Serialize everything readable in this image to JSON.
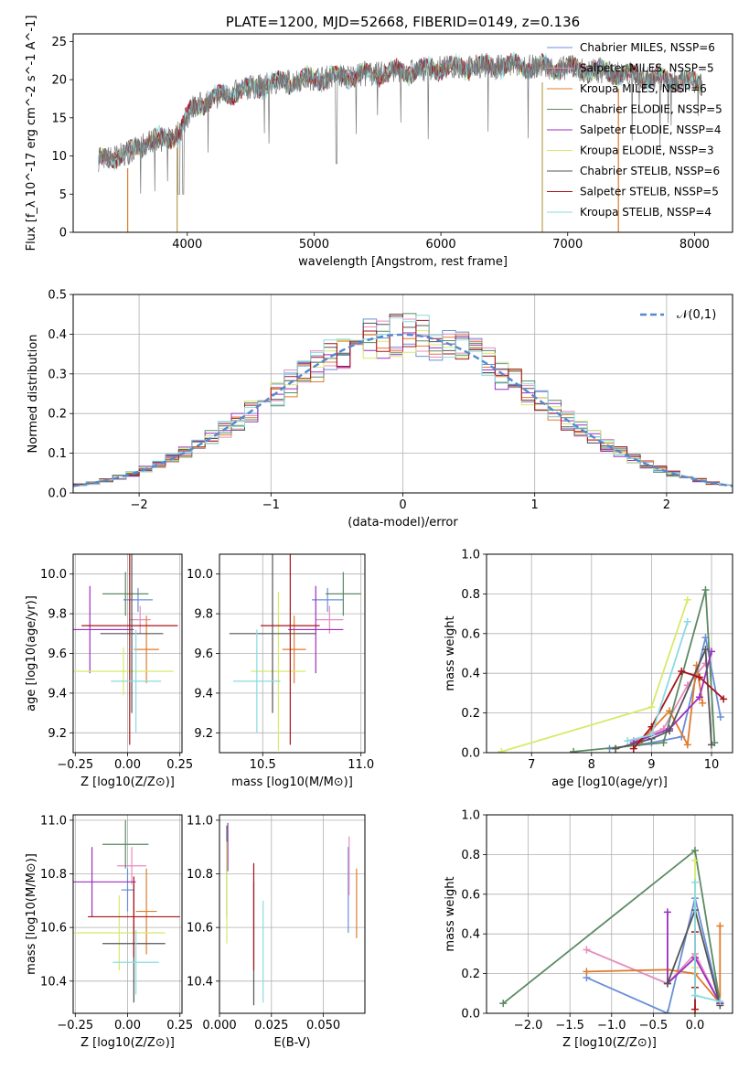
{
  "colors": {
    "chabrier_miles": "#6a8fd8",
    "salpeter_miles": "#e58cbf",
    "kroupa_miles": "#e07b2b",
    "chabrier_elodie": "#5b8a62",
    "salpeter_elodie": "#9b2fc2",
    "kroupa_elodie": "#d6ea6a",
    "chabrier_stelib": "#555555",
    "salpeter_stelib": "#a8141a",
    "kroupa_stelib": "#8adbe0",
    "normal_fit": "#5588cc",
    "grid": "#b0b0b0"
  },
  "chart_data": [
    {
      "id": "spectrum",
      "type": "line",
      "title": "PLATE=1200, MJD=52668, FIBERID=0149, z=0.136",
      "xlabel": "wavelength [Angstrom, rest frame]",
      "ylabel": "Flux [f_λ 10^-17 erg cm^-2 s^-1 A^-1]",
      "xlim": [
        3100,
        8300
      ],
      "ylim": [
        0,
        26
      ],
      "xticks": [
        "4000",
        "5000",
        "6000",
        "7000",
        "8000"
      ],
      "yticks": [
        "0",
        "5",
        "10",
        "15",
        "20",
        "25"
      ],
      "grid": false,
      "legend_position": "right",
      "legend": [
        "Chabrier MILES, NSSP=6",
        "Salpeter MILES, NSSP=5",
        "Kroupa MILES, NSSP=6",
        "Chabrier ELODIE, NSSP=5",
        "Salpeter ELODIE, NSSP=4",
        "Kroupa ELODIE, NSSP=3",
        "Chabrier STELIB, NSSP=6",
        "Salpeter STELIB, NSSP=5",
        "Kroupa STELIB, NSSP=4"
      ],
      "continuum": [
        [
          3300,
          9.5
        ],
        [
          3450,
          10.0
        ],
        [
          3550,
          10.5
        ],
        [
          3700,
          12
        ],
        [
          3850,
          12.2
        ],
        [
          3950,
          13.5
        ],
        [
          4050,
          16.5
        ],
        [
          4200,
          17.5
        ],
        [
          4400,
          18.5
        ],
        [
          4600,
          19.3
        ],
        [
          4800,
          19.8
        ],
        [
          5000,
          20.2
        ],
        [
          5200,
          20.4
        ],
        [
          5500,
          20.8
        ],
        [
          5800,
          21.2
        ],
        [
          6000,
          21.6
        ],
        [
          6300,
          21.7
        ],
        [
          6600,
          21.8
        ],
        [
          7000,
          21.5
        ],
        [
          7300,
          21.0
        ],
        [
          7600,
          20.4
        ],
        [
          7900,
          19.8
        ],
        [
          8060,
          19.5
        ]
      ],
      "dips": [
        [
          3530,
          0
        ],
        [
          3920,
          0
        ],
        [
          6800,
          0
        ],
        [
          7400,
          0
        ]
      ]
    },
    {
      "id": "residuals",
      "type": "histogram",
      "xlabel": "(data-model)/error",
      "ylabel": "Normed distribution",
      "xlim": [
        -2.5,
        2.5
      ],
      "ylim": [
        0,
        0.5
      ],
      "xticks": [
        "−2",
        "−1",
        "0",
        "1",
        "2"
      ],
      "yticks": [
        "0.0",
        "0.1",
        "0.2",
        "0.3",
        "0.4",
        "0.5"
      ],
      "grid": true,
      "legend_position": "top-right",
      "legend": [
        "𝒩(0,1)"
      ],
      "bin_width": 0.1,
      "bin_start": -2.6
    },
    {
      "id": "age_vs_Z",
      "type": "scatter",
      "xlabel": "Z [log10(Z/Z⊙)]",
      "ylabel": "age  [log10(age/yr)]",
      "xlim": [
        -0.26,
        0.26
      ],
      "ylim": [
        9.1,
        10.1
      ],
      "xticks": [
        "−0.25",
        "0.00",
        "0.25"
      ],
      "yticks": [
        "9.2",
        "9.4",
        "9.6",
        "9.8",
        "10.0"
      ],
      "grid": true,
      "points": [
        {
          "x": 0.05,
          "xerr": 0.07,
          "y": 9.87,
          "yerr": 0.06
        },
        {
          "x": 0.06,
          "xerr": 0.05,
          "y": 9.77,
          "yerr": 0.07
        },
        {
          "x": 0.09,
          "xerr": 0.06,
          "y": 9.62,
          "yerr": 0.17
        },
        {
          "x": -0.01,
          "xerr": 0.11,
          "y": 9.9,
          "yerr": 0.11
        },
        {
          "x": -0.18,
          "xerr": 0.21,
          "y": 9.72,
          "yerr": 0.22
        },
        {
          "x": -0.02,
          "xerr": 0.24,
          "y": 9.51,
          "yerr": 0.12
        },
        {
          "x": 0.02,
          "xerr": 0.15,
          "y": 9.7,
          "yerr": 0.4
        },
        {
          "x": 0.01,
          "xerr": 0.23,
          "y": 9.74,
          "yerr": 0.6
        },
        {
          "x": 0.04,
          "xerr": 0.12,
          "y": 9.46,
          "yerr": 0.26
        }
      ]
    },
    {
      "id": "age_vs_mass",
      "type": "scatter",
      "xlabel": "mass [log10(M/M⊙)]",
      "ylabel": "",
      "xlim": [
        10.28,
        11.02
      ],
      "ylim": [
        9.1,
        10.1
      ],
      "xticks": [
        "10.5",
        "11.0"
      ],
      "yticks": [
        "9.2",
        "9.4",
        "9.6",
        "9.8",
        "10.0"
      ],
      "grid": true,
      "points": [
        {
          "x": 10.83,
          "xerr": 0.08,
          "y": 9.87,
          "yerr": 0.06
        },
        {
          "x": 10.84,
          "xerr": 0.07,
          "y": 9.77,
          "yerr": 0.07
        },
        {
          "x": 10.66,
          "xerr": 0.06,
          "y": 9.62,
          "yerr": 0.17
        },
        {
          "x": 10.91,
          "xerr": 0.09,
          "y": 9.9,
          "yerr": 0.11
        },
        {
          "x": 10.77,
          "xerr": 0.14,
          "y": 9.72,
          "yerr": 0.22
        },
        {
          "x": 10.58,
          "xerr": 0.14,
          "y": 9.51,
          "yerr": 0.4
        },
        {
          "x": 10.55,
          "xerr": 0.22,
          "y": 9.7,
          "yerr": 0.4
        },
        {
          "x": 10.64,
          "xerr": 0.15,
          "y": 9.74,
          "yerr": 0.6
        },
        {
          "x": 10.47,
          "xerr": 0.12,
          "y": 9.46,
          "yerr": 0.26
        }
      ]
    },
    {
      "id": "mass_weight_vs_age",
      "type": "line",
      "xlabel": "age  [log10(age/yr)]",
      "ylabel": "mass weight",
      "xlim": [
        6.25,
        10.35
      ],
      "ylim": [
        0,
        1.0
      ],
      "xticks": [
        "7",
        "8",
        "9",
        "10"
      ],
      "yticks": [
        "0.0",
        "0.2",
        "0.4",
        "0.6",
        "0.8",
        "1.0"
      ],
      "grid": true,
      "series": [
        {
          "color": "chabrier_miles",
          "x": [
            8.3,
            9.0,
            9.5,
            9.9,
            10.15
          ],
          "y": [
            0.02,
            0.05,
            0.08,
            0.58,
            0.18
          ]
        },
        {
          "color": "salpeter_miles",
          "x": [
            8.7,
            9.2,
            9.6,
            9.9
          ],
          "y": [
            0.06,
            0.12,
            0.34,
            0.45
          ]
        },
        {
          "color": "kroupa_miles",
          "x": [
            8.8,
            9.3,
            9.6,
            9.75,
            9.85
          ],
          "y": [
            0.05,
            0.21,
            0.04,
            0.44,
            0.25
          ]
        },
        {
          "color": "chabrier_elodie",
          "x": [
            7.7,
            9.2,
            9.9,
            10.05
          ],
          "y": [
            0.005,
            0.05,
            0.82,
            0.05
          ]
        },
        {
          "color": "salpeter_elodie",
          "x": [
            8.7,
            9.3,
            9.8,
            10.0
          ],
          "y": [
            0.05,
            0.12,
            0.28,
            0.51
          ]
        },
        {
          "color": "kroupa_elodie",
          "x": [
            6.5,
            9.0,
            9.6
          ],
          "y": [
            0.005,
            0.23,
            0.77
          ]
        },
        {
          "color": "chabrier_stelib",
          "x": [
            8.4,
            9.0,
            9.3,
            9.9,
            10.0
          ],
          "y": [
            0.02,
            0.07,
            0.11,
            0.52,
            0.04
          ]
        },
        {
          "color": "salpeter_stelib",
          "x": [
            8.7,
            9.0,
            9.5,
            9.8,
            10.2
          ],
          "y": [
            0.02,
            0.13,
            0.41,
            0.38,
            0.27
          ]
        },
        {
          "color": "kroupa_stelib",
          "x": [
            8.6,
            9.0,
            9.6
          ],
          "y": [
            0.06,
            0.09,
            0.66
          ]
        }
      ]
    },
    {
      "id": "mass_vs_Z",
      "type": "scatter",
      "xlabel": "Z [log10(Z/Z⊙)]",
      "ylabel": "mass [log10(M/M⊙)]",
      "xlim": [
        -0.26,
        0.26
      ],
      "ylim": [
        10.28,
        11.02
      ],
      "xticks": [
        "−0.25",
        "0.00",
        "0.25"
      ],
      "yticks": [
        "10.4",
        "10.6",
        "10.8",
        "11.0"
      ],
      "grid": true,
      "points": [
        {
          "x": 0.0,
          "xerr": 0.03,
          "y": 10.74,
          "yerr": 0.08
        },
        {
          "x": 0.02,
          "xerr": 0.07,
          "y": 10.83,
          "yerr": 0.07
        },
        {
          "x": 0.09,
          "xerr": 0.05,
          "y": 10.66,
          "yerr": 0.16
        },
        {
          "x": -0.01,
          "xerr": 0.11,
          "y": 10.91,
          "yerr": 0.09
        },
        {
          "x": -0.17,
          "xerr": 0.21,
          "y": 10.77,
          "yerr": 0.13
        },
        {
          "x": -0.04,
          "xerr": 0.22,
          "y": 10.58,
          "yerr": 0.14
        },
        {
          "x": 0.03,
          "xerr": 0.15,
          "y": 10.54,
          "yerr": 0.22
        },
        {
          "x": 0.03,
          "xerr": 0.22,
          "y": 10.64,
          "yerr": 0.15
        },
        {
          "x": 0.04,
          "xerr": 0.11,
          "y": 10.47,
          "yerr": 0.12
        }
      ]
    },
    {
      "id": "mass_vs_ebv",
      "type": "scatter",
      "xlabel": "E(B-V)",
      "ylabel": "",
      "xlim": [
        0.0,
        0.07
      ],
      "ylim": [
        10.28,
        11.02
      ],
      "xticks": [
        "0.000",
        "0.025",
        "0.050"
      ],
      "yticks": [
        "10.4",
        "10.6",
        "10.8",
        "11.0"
      ],
      "grid": true,
      "points": [
        {
          "x": 0.062,
          "xerr": 0.0,
          "y": 10.74,
          "yerr": 0.16
        },
        {
          "x": 0.0624,
          "xerr": 0.0,
          "y": 10.83,
          "yerr": 0.11
        },
        {
          "x": 0.066,
          "xerr": 0.0,
          "y": 10.69,
          "yerr": 0.13
        },
        {
          "x": 0.0035,
          "xerr": 0.0,
          "y": 10.81,
          "yerr": 0.17
        },
        {
          "x": 0.004,
          "xerr": 0.0,
          "y": 10.9,
          "yerr": 0.09
        },
        {
          "x": 0.0035,
          "xerr": 0.0,
          "y": 10.73,
          "yerr": 0.19
        },
        {
          "x": 0.0165,
          "xerr": 0.0,
          "y": 10.54,
          "yerr": 0.23
        },
        {
          "x": 0.0165,
          "xerr": 0.0,
          "y": 10.64,
          "yerr": 0.2
        },
        {
          "x": 0.021,
          "xerr": 0.0,
          "y": 10.51,
          "yerr": 0.19
        }
      ]
    },
    {
      "id": "mass_weight_vs_Z",
      "type": "line",
      "xlabel": "Z [log10(Z/Z⊙)]",
      "ylabel": "mass weight",
      "xlim": [
        -2.5,
        0.45
      ],
      "ylim": [
        0,
        1.0
      ],
      "xticks": [
        "−2.0",
        "−1.5",
        "−1.0",
        "−0.5",
        "0.0"
      ],
      "yticks": [
        "0.0",
        "0.2",
        "0.4",
        "0.6",
        "0.8",
        "1.0"
      ],
      "grid": true,
      "series": [
        {
          "color": "chabrier_miles",
          "x": [
            -1.3,
            -0.33,
            0.0,
            0.3
          ],
          "y": [
            0.18,
            0.0,
            0.58,
            0.05
          ]
        },
        {
          "color": "salpeter_miles",
          "x": [
            -1.3,
            -0.33,
            0.0,
            0.3
          ],
          "y": [
            0.32,
            0.15,
            0.3,
            0.05
          ]
        },
        {
          "color": "kroupa_miles",
          "x": [
            -1.3,
            -0.33,
            0.0,
            0.3,
            0.3
          ],
          "y": [
            0.21,
            0.22,
            0.2,
            0.05,
            0.44
          ]
        },
        {
          "color": "chabrier_elodie",
          "x": [
            -2.3,
            0.0,
            0.3
          ],
          "y": [
            0.05,
            0.82,
            0.05
          ]
        },
        {
          "color": "salpeter_elodie",
          "x": [
            -0.33,
            -0.33,
            0.0,
            0.3
          ],
          "y": [
            0.51,
            0.15,
            0.28,
            0.05
          ]
        },
        {
          "color": "kroupa_elodie",
          "x": [
            0.0,
            0.0,
            0.0
          ],
          "y": [
            0.77,
            0.23,
            0.0
          ]
        },
        {
          "color": "chabrier_stelib",
          "x": [
            -0.33,
            0.0,
            0.3
          ],
          "y": [
            0.15,
            0.52,
            0.04
          ]
        },
        {
          "color": "salpeter_stelib",
          "x": [
            0.0,
            0.0,
            0.0
          ],
          "y": [
            0.41,
            0.13,
            0.02
          ]
        },
        {
          "color": "kroupa_stelib",
          "x": [
            0.0,
            0.0,
            0.3
          ],
          "y": [
            0.66,
            0.09,
            0.06
          ]
        }
      ]
    }
  ]
}
